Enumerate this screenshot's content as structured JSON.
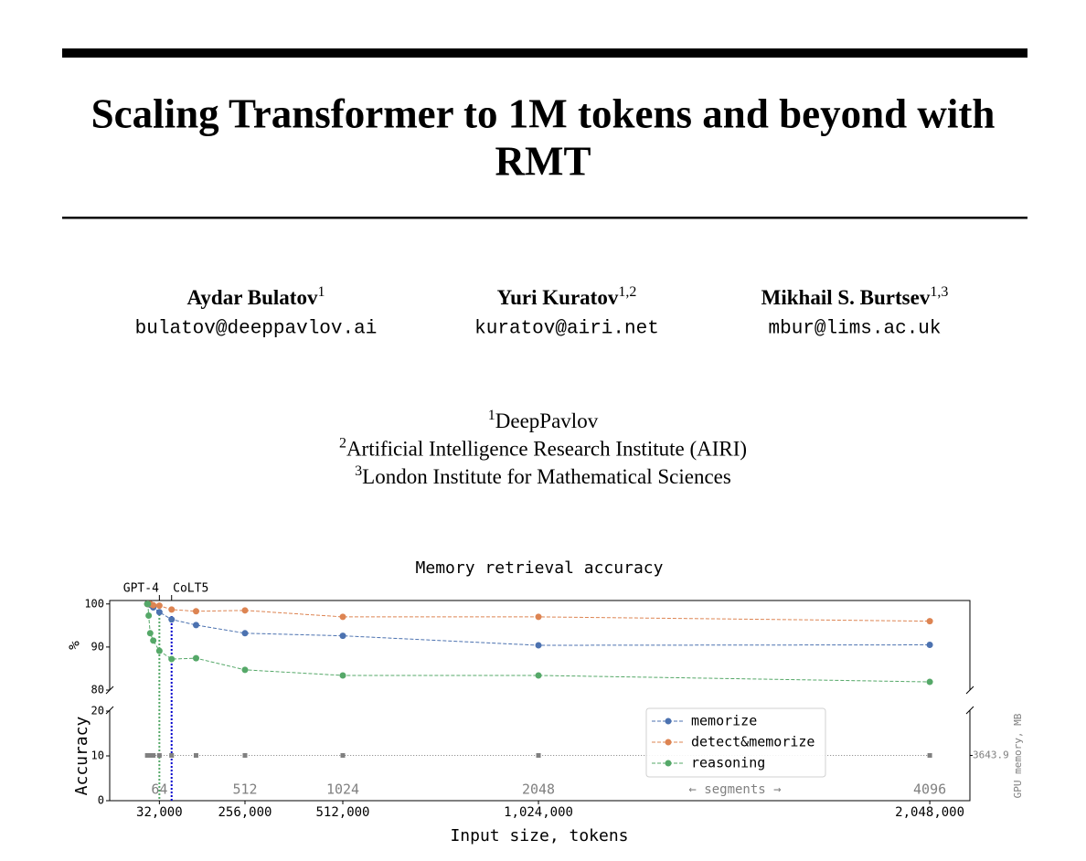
{
  "header": {
    "title_lines": [
      "Scaling Transformer to 1M tokens and beyond with",
      "RMT"
    ]
  },
  "authors": [
    {
      "name": "Aydar Bulatov",
      "affiliation": "1",
      "email": "bulatov@deeppavlov.ai"
    },
    {
      "name": "Yuri Kuratov",
      "affiliation": "1,2",
      "email": "kuratov@airi.net"
    },
    {
      "name": "Mikhail S. Burtsev",
      "affiliation": "1,3",
      "email": "mbur@lims.ac.uk"
    }
  ],
  "affiliations": [
    {
      "mark": "1",
      "name": "DeepPavlov"
    },
    {
      "mark": "2",
      "name": "Artificial Intelligence Research Institute (AIRI)"
    },
    {
      "mark": "3",
      "name": "London Institute for Mathematical Sciences"
    }
  ],
  "chart_data": {
    "type": "line",
    "title": "Memory retrieval accuracy",
    "xlabel": "Input size, tokens",
    "ylabel": "Accuracy",
    "top_ylabel": "%",
    "y2label": "GPU memory, MB",
    "x": [
      500,
      1000,
      2000,
      4000,
      8000,
      16000,
      32000,
      64000,
      128000,
      256000,
      512000,
      1024000,
      2048000
    ],
    "xlim": [
      -98000,
      2153000
    ],
    "xticks": [
      {
        "value": 32000,
        "label": "32,000"
      },
      {
        "value": 256000,
        "label": "256,000"
      },
      {
        "value": 512000,
        "label": "512,000"
      },
      {
        "value": 1024000,
        "label": "1,024,000"
      },
      {
        "value": 2048000,
        "label": "2,048,000"
      }
    ],
    "top_ylim": [
      80,
      100.8
    ],
    "top_yticks": [
      80,
      90,
      100
    ],
    "ylim": [
      0,
      20.2
    ],
    "yticks": [
      0,
      10,
      20
    ],
    "y2lim": [
      0,
      7287.8
    ],
    "y2ticks": [
      3643.9
    ],
    "series": [
      {
        "name": "memorize",
        "color": "#4c72b0",
        "values": [
          100,
          100,
          100,
          100,
          99.8,
          99.2,
          98.1,
          96.4,
          95.1,
          93.2,
          92.6,
          90.4,
          90.5
        ]
      },
      {
        "name": "detect&memorize",
        "color": "#dd8452",
        "values": [
          100,
          100,
          100,
          100,
          100,
          99.7,
          99.6,
          98.7,
          98.3,
          98.5,
          97.0,
          97.0,
          96.0
        ]
      },
      {
        "name": "reasoning",
        "color": "#55a868",
        "values": [
          100,
          100,
          100,
          97.3,
          93.2,
          91.5,
          89.1,
          87.2,
          87.4,
          84.7,
          83.4,
          83.4,
          81.9
        ]
      }
    ],
    "gpu_memory": {
      "color": "#808080",
      "axis": "y2",
      "values": [
        3643.9,
        3643.9,
        3643.9,
        3643.9,
        3643.9,
        3643.9,
        3643.9,
        3643.9,
        3643.9,
        3643.9,
        3643.9,
        3643.9,
        3643.9
      ]
    },
    "segments": {
      "label": "← segments →",
      "ticks": [
        {
          "value": 32000,
          "label": "64"
        },
        {
          "value": 256000,
          "label": "512"
        },
        {
          "value": 512000,
          "label": "1024"
        },
        {
          "value": 1024000,
          "label": "2048"
        },
        {
          "value": 2048000,
          "label": "4096"
        }
      ]
    },
    "annotations": [
      {
        "text": "GPT-4",
        "x": 32000,
        "color": "#55a868"
      },
      {
        "text": "CoLT5",
        "x": 64000,
        "color": "#0000cc"
      }
    ],
    "legend": "lower right"
  }
}
